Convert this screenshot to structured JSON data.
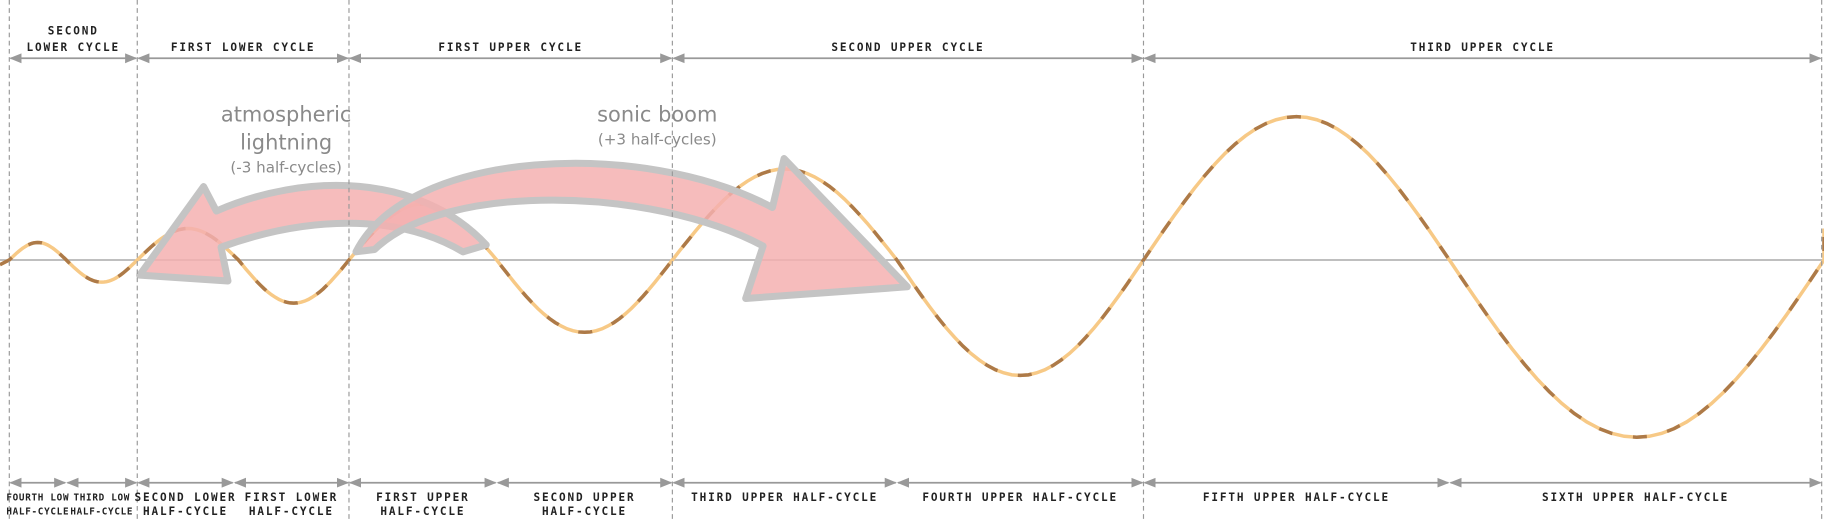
{
  "top_cycles": [
    {
      "lines": [
        "SECOND",
        "LOWER CYCLE"
      ]
    },
    {
      "lines": [
        "FIRST LOWER CYCLE"
      ]
    },
    {
      "lines": [
        "FIRST UPPER CYCLE"
      ]
    },
    {
      "lines": [
        "SECOND UPPER CYCLE"
      ]
    },
    {
      "lines": [
        "THIRD UPPER CYCLE"
      ]
    }
  ],
  "half_cycles": [
    {
      "lines": [
        "FOURTH LOW",
        "HALF-CYCLE"
      ]
    },
    {
      "lines": [
        "THIRD LOW",
        "HALF-CYCLE"
      ]
    },
    {
      "lines": [
        "SECOND LOWER",
        "HALF-CYCLE"
      ]
    },
    {
      "lines": [
        "FIRST LOWER",
        "HALF-CYCLE"
      ]
    },
    {
      "lines": [
        "FIRST UPPER",
        "HALF-CYCLE"
      ]
    },
    {
      "lines": [
        "SECOND UPPER",
        "HALF-CYCLE"
      ]
    },
    {
      "lines": [
        "THIRD UPPER HALF-CYCLE"
      ]
    },
    {
      "lines": [
        "FOURTH UPPER HALF-CYCLE"
      ]
    },
    {
      "lines": [
        "FIFTH UPPER HALF-CYCLE"
      ]
    },
    {
      "lines": [
        "SIXTH UPPER HALF-CYCLE"
      ]
    }
  ],
  "annotations": {
    "lightning": {
      "lines": [
        "atmospheric",
        "lightning"
      ],
      "note": "(-3 half-cycles)"
    },
    "sonic_boom": {
      "lines": [
        "sonic boom"
      ],
      "note": "(+3 half-cycles)"
    }
  }
}
